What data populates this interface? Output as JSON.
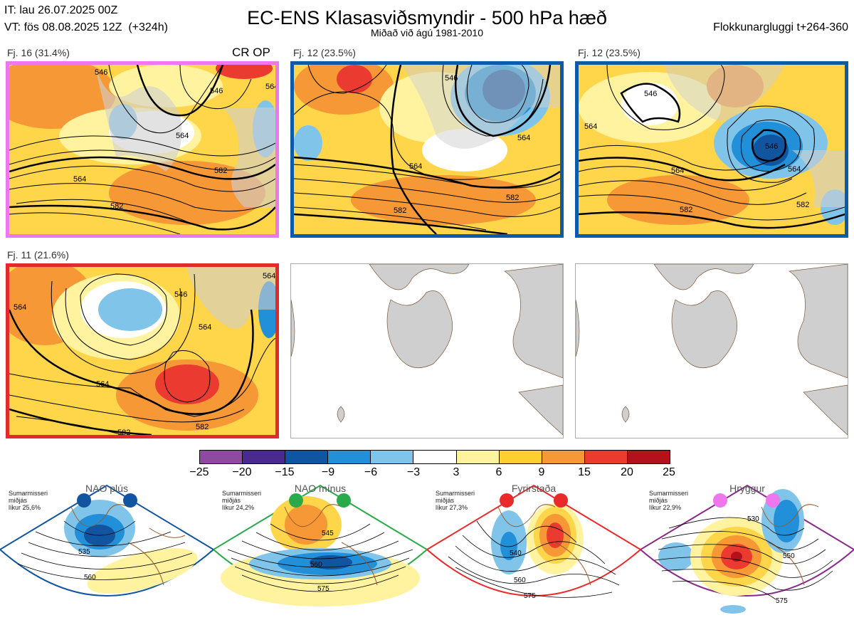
{
  "header": {
    "it": "IT: lau 26.07.2025 00Z",
    "vt": "VT: fös 08.08.2025 12Z  (+324h)",
    "title": "EC-ENS Klasasviðsmyndir - 500 hPa hæð",
    "subtitle": "Miðað við ágú 1981-2010",
    "window": "Flokkunargluggi t+264-360"
  },
  "panels": [
    {
      "label": "Fj. 16 (31.4%)",
      "tag": "CR OP",
      "border": "#ee77ee",
      "contours": [
        "564",
        "564",
        "582",
        "546",
        "546",
        "582",
        "564"
      ]
    },
    {
      "label": "Fj. 12 (23.5%)",
      "tag": "",
      "border": "#0d5aa7",
      "contours": [
        "564",
        "582",
        "582",
        "546",
        "564"
      ]
    },
    {
      "label": "Fj. 12 (23.5%)",
      "tag": "",
      "border": "#0d5aa7",
      "contours": [
        "546",
        "564",
        "582",
        "546",
        "564",
        "564",
        "582"
      ]
    },
    {
      "label": "Fj. 11 (21.6%)",
      "tag": "",
      "border": "#e32a2a",
      "contours": [
        "564",
        "546",
        "564",
        "564",
        "582",
        "564",
        "582"
      ]
    },
    {
      "label": "",
      "tag": "",
      "border": "#aaaaaa",
      "contours": []
    },
    {
      "label": "",
      "tag": "",
      "border": "#aaaaaa",
      "contours": []
    }
  ],
  "colorbar": {
    "colors": [
      "#8e4a9e",
      "#4a2a8e",
      "#1155a0",
      "#2190d8",
      "#80c4ea",
      "#ffffff",
      "#fff3a0",
      "#ffcf30",
      "#f69836",
      "#eb3b30",
      "#b3121a"
    ],
    "ticks": [
      "−25",
      "−20",
      "−15",
      "−9",
      "−6",
      "−3",
      "3",
      "6",
      "9",
      "15",
      "20",
      "25"
    ]
  },
  "regimes": [
    {
      "title": "NAO plús",
      "season": "Sumarmisseri",
      "median": "miðjás",
      "prob": "líkur 25,6%",
      "dot_color": "#1155a0",
      "border": "#1155a0",
      "contours": [
        "535",
        "560"
      ]
    },
    {
      "title": "NAO mínus",
      "season": "Sumarmisseri",
      "median": "miðjás",
      "prob": "líkur 24,2%",
      "dot_color": "#2aaa4a",
      "border": "#2aaa4a",
      "contours": [
        "545",
        "560",
        "575"
      ]
    },
    {
      "title": "Fyrirstaða",
      "season": "Sumarmisseri",
      "median": "miðjás",
      "prob": "líkur 27,3%",
      "dot_color": "#e82a2a",
      "border": "#e82a2a",
      "contours": [
        "540",
        "560",
        "575"
      ]
    },
    {
      "title": "Hryggur",
      "season": "Sumarmisseri",
      "median": "miðjás",
      "prob": "líkur 22,9%",
      "dot_color": "#ee77ee",
      "border": "#8a2a8a",
      "contours": [
        "530",
        "550",
        "575"
      ]
    }
  ]
}
